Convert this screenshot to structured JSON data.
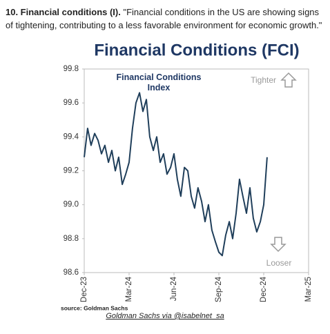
{
  "heading": {
    "label": "10. Financial conditions (I).",
    "text": "\"Financial conditions in the US are showing signs of tightening, contributing to a less favorable environment for economic growth.\""
  },
  "caption": "Goldman Sachs via @isabelnet_sa",
  "chart_data": {
    "type": "line",
    "title": "Financial Conditions (FCI)",
    "annotations": {
      "series_label": "Financial Conditions Index",
      "up": "Tighter",
      "down": "Looser",
      "source": "source: Goldman Sachs"
    },
    "x": [
      2023.917,
      2023.936,
      2023.955,
      2023.975,
      2023.994,
      2024.013,
      2024.032,
      2024.052,
      2024.071,
      2024.09,
      2024.109,
      2024.129,
      2024.148,
      2024.167,
      2024.186,
      2024.205,
      2024.225,
      2024.244,
      2024.263,
      2024.282,
      2024.302,
      2024.321,
      2024.34,
      2024.359,
      2024.378,
      2024.398,
      2024.417,
      2024.436,
      2024.455,
      2024.475,
      2024.494,
      2024.513,
      2024.532,
      2024.551,
      2024.571,
      2024.59,
      2024.609,
      2024.628,
      2024.648,
      2024.667,
      2024.686,
      2024.705,
      2024.725,
      2024.744,
      2024.763,
      2024.782,
      2024.801,
      2024.821,
      2024.84,
      2024.859,
      2024.878,
      2024.898,
      2024.917,
      2024.936
    ],
    "series": [
      {
        "name": "Financial Conditions Index",
        "color": "#1f3e5a",
        "values": [
          99.28,
          99.45,
          99.35,
          99.42,
          99.38,
          99.3,
          99.35,
          99.25,
          99.32,
          99.2,
          99.28,
          99.12,
          99.18,
          99.25,
          99.45,
          99.6,
          99.66,
          99.55,
          99.62,
          99.4,
          99.32,
          99.4,
          99.25,
          99.3,
          99.18,
          99.22,
          99.3,
          99.15,
          99.05,
          99.22,
          99.2,
          99.05,
          98.98,
          99.1,
          99.02,
          98.9,
          99.0,
          98.85,
          98.78,
          98.72,
          98.7,
          98.82,
          98.9,
          98.8,
          98.95,
          99.15,
          99.05,
          98.95,
          99.1,
          98.92,
          98.84,
          98.9,
          99.0,
          99.28
        ]
      }
    ],
    "xlim": [
      2023.917,
      2025.167
    ],
    "xticks": [
      {
        "value": 2023.917,
        "label": "Dec-23"
      },
      {
        "value": 2024.167,
        "label": "Mar-24"
      },
      {
        "value": 2024.417,
        "label": "Jun-24"
      },
      {
        "value": 2024.667,
        "label": "Sep-24"
      },
      {
        "value": 2024.917,
        "label": "Dec-24"
      },
      {
        "value": 2025.167,
        "label": "Mar-25"
      }
    ],
    "ylim": [
      98.6,
      99.8
    ],
    "yticks": [
      98.6,
      98.8,
      {
        "value": 99,
        "label": "99.0"
      },
      99.2,
      99.4,
      99.6,
      99.8
    ]
  }
}
